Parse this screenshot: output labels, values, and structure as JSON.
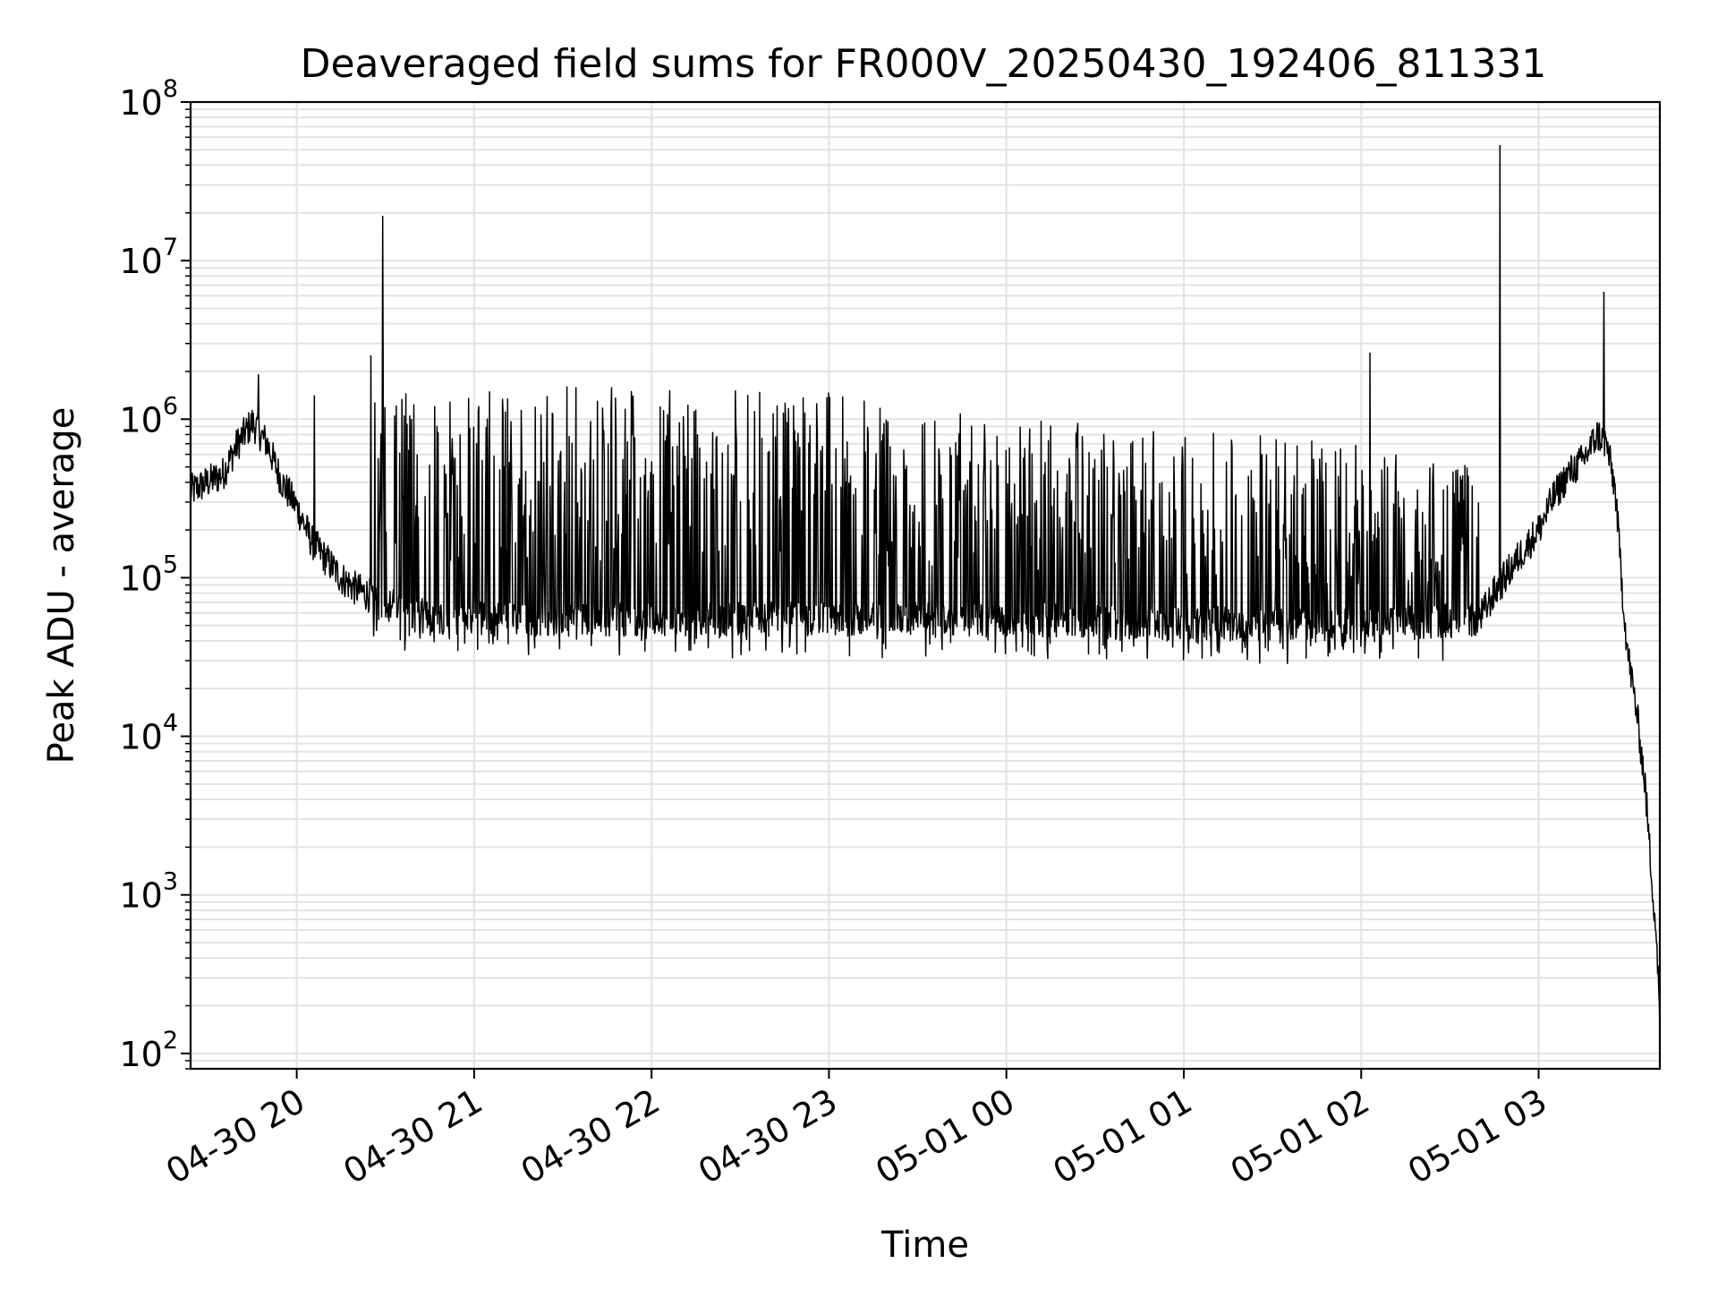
{
  "chart_data": {
    "type": "line",
    "title": "Deaveraged field sums for FR000V_20250430_192406_811331",
    "xlabel": "Time",
    "ylabel": "Peak ADU - average",
    "y_scale": "log",
    "ylim": [
      80,
      100000000
    ],
    "xlim": [
      "2025-04-30 19:24:06",
      "2025-05-01 03:41:00"
    ],
    "grid": true,
    "legend": "none",
    "line_color": "#000000",
    "x_ticks": [
      {
        "value": "2025-04-30 20:00",
        "label": "04-30 20"
      },
      {
        "value": "2025-04-30 21:00",
        "label": "04-30 21"
      },
      {
        "value": "2025-04-30 22:00",
        "label": "04-30 22"
      },
      {
        "value": "2025-04-30 23:00",
        "label": "04-30 23"
      },
      {
        "value": "2025-05-01 00:00",
        "label": "05-01 00"
      },
      {
        "value": "2025-05-01 01:00",
        "label": "05-01 01"
      },
      {
        "value": "2025-05-01 02:00",
        "label": "05-01 02"
      },
      {
        "value": "2025-05-01 03:00",
        "label": "05-01 03"
      }
    ],
    "y_ticks": [
      {
        "value": 100,
        "base": "10",
        "exp": "2"
      },
      {
        "value": 1000,
        "base": "10",
        "exp": "3"
      },
      {
        "value": 10000,
        "base": "10",
        "exp": "4"
      },
      {
        "value": 100000,
        "base": "10",
        "exp": "5"
      },
      {
        "value": 1000000,
        "base": "10",
        "exp": "6"
      },
      {
        "value": 10000000,
        "base": "10",
        "exp": "7"
      },
      {
        "value": 100000000,
        "base": "10",
        "exp": "8"
      }
    ],
    "series": [
      {
        "baseline": [
          {
            "x": "2025-04-30 19:24",
            "y": 350000
          },
          {
            "x": "2025-04-30 19:35",
            "y": 450000
          },
          {
            "x": "2025-04-30 19:40",
            "y": 700000
          },
          {
            "x": "2025-04-30 19:45",
            "y": 950000
          },
          {
            "x": "2025-04-30 19:50",
            "y": 700000
          },
          {
            "x": "2025-04-30 19:55",
            "y": 400000
          },
          {
            "x": "2025-04-30 20:00",
            "y": 280000
          },
          {
            "x": "2025-04-30 20:05",
            "y": 170000
          },
          {
            "x": "2025-04-30 20:10",
            "y": 130000
          },
          {
            "x": "2025-04-30 20:15",
            "y": 100000
          },
          {
            "x": "2025-04-30 20:20",
            "y": 85000
          },
          {
            "x": "2025-04-30 20:30",
            "y": 70000
          },
          {
            "x": "2025-04-30 20:40",
            "y": 58000
          },
          {
            "x": "2025-04-30 21:00",
            "y": 55000
          },
          {
            "x": "2025-04-30 22:00",
            "y": 55000
          },
          {
            "x": "2025-04-30 23:00",
            "y": 55000
          },
          {
            "x": "2025-05-01 00:00",
            "y": 55000
          },
          {
            "x": "2025-05-01 01:00",
            "y": 52000
          },
          {
            "x": "2025-05-01 02:00",
            "y": 50000
          },
          {
            "x": "2025-05-01 02:40",
            "y": 55000
          },
          {
            "x": "2025-05-01 02:45",
            "y": 80000
          },
          {
            "x": "2025-05-01 02:50",
            "y": 110000
          },
          {
            "x": "2025-05-01 02:55",
            "y": 150000
          },
          {
            "x": "2025-05-01 03:00",
            "y": 200000
          },
          {
            "x": "2025-05-01 03:05",
            "y": 320000
          },
          {
            "x": "2025-05-01 03:10",
            "y": 450000
          },
          {
            "x": "2025-05-01 03:15",
            "y": 550000
          },
          {
            "x": "2025-05-01 03:20",
            "y": 800000
          },
          {
            "x": "2025-05-01 03:23",
            "y": 700000
          },
          {
            "x": "2025-05-01 03:26",
            "y": 350000
          },
          {
            "x": "2025-05-01 03:28",
            "y": 100000
          },
          {
            "x": "2025-05-01 03:30",
            "y": 35000
          },
          {
            "x": "2025-05-01 03:33",
            "y": 15000
          },
          {
            "x": "2025-05-01 03:36",
            "y": 5000
          },
          {
            "x": "2025-05-01 03:38",
            "y": 1500
          },
          {
            "x": "2025-05-01 03:40",
            "y": 500
          },
          {
            "x": "2025-05-01 03:41",
            "y": 150
          }
        ],
        "burst_envelope": [
          {
            "x": "2025-04-30 20:25",
            "y": 1500000
          },
          {
            "x": "2025-04-30 21:00",
            "y": 1600000
          },
          {
            "x": "2025-04-30 22:00",
            "y": 1600000
          },
          {
            "x": "2025-04-30 23:00",
            "y": 1500000
          },
          {
            "x": "2025-05-01 00:00",
            "y": 1000000
          },
          {
            "x": "2025-05-01 01:00",
            "y": 900000
          },
          {
            "x": "2025-05-01 02:00",
            "y": 700000
          },
          {
            "x": "2025-05-01 02:40",
            "y": 500000
          }
        ],
        "spikes": [
          {
            "x": "2025-04-30 19:47",
            "y": 1900000
          },
          {
            "x": "2025-04-30 20:06",
            "y": 1400000
          },
          {
            "x": "2025-04-30 20:25",
            "y": 2500000
          },
          {
            "x": "2025-04-30 20:29",
            "y": 19000000
          },
          {
            "x": "2025-05-01 02:03",
            "y": 2600000
          },
          {
            "x": "2025-05-01 02:47",
            "y": 53000000
          },
          {
            "x": "2025-05-01 03:22",
            "y": 6300000
          }
        ]
      }
    ]
  }
}
